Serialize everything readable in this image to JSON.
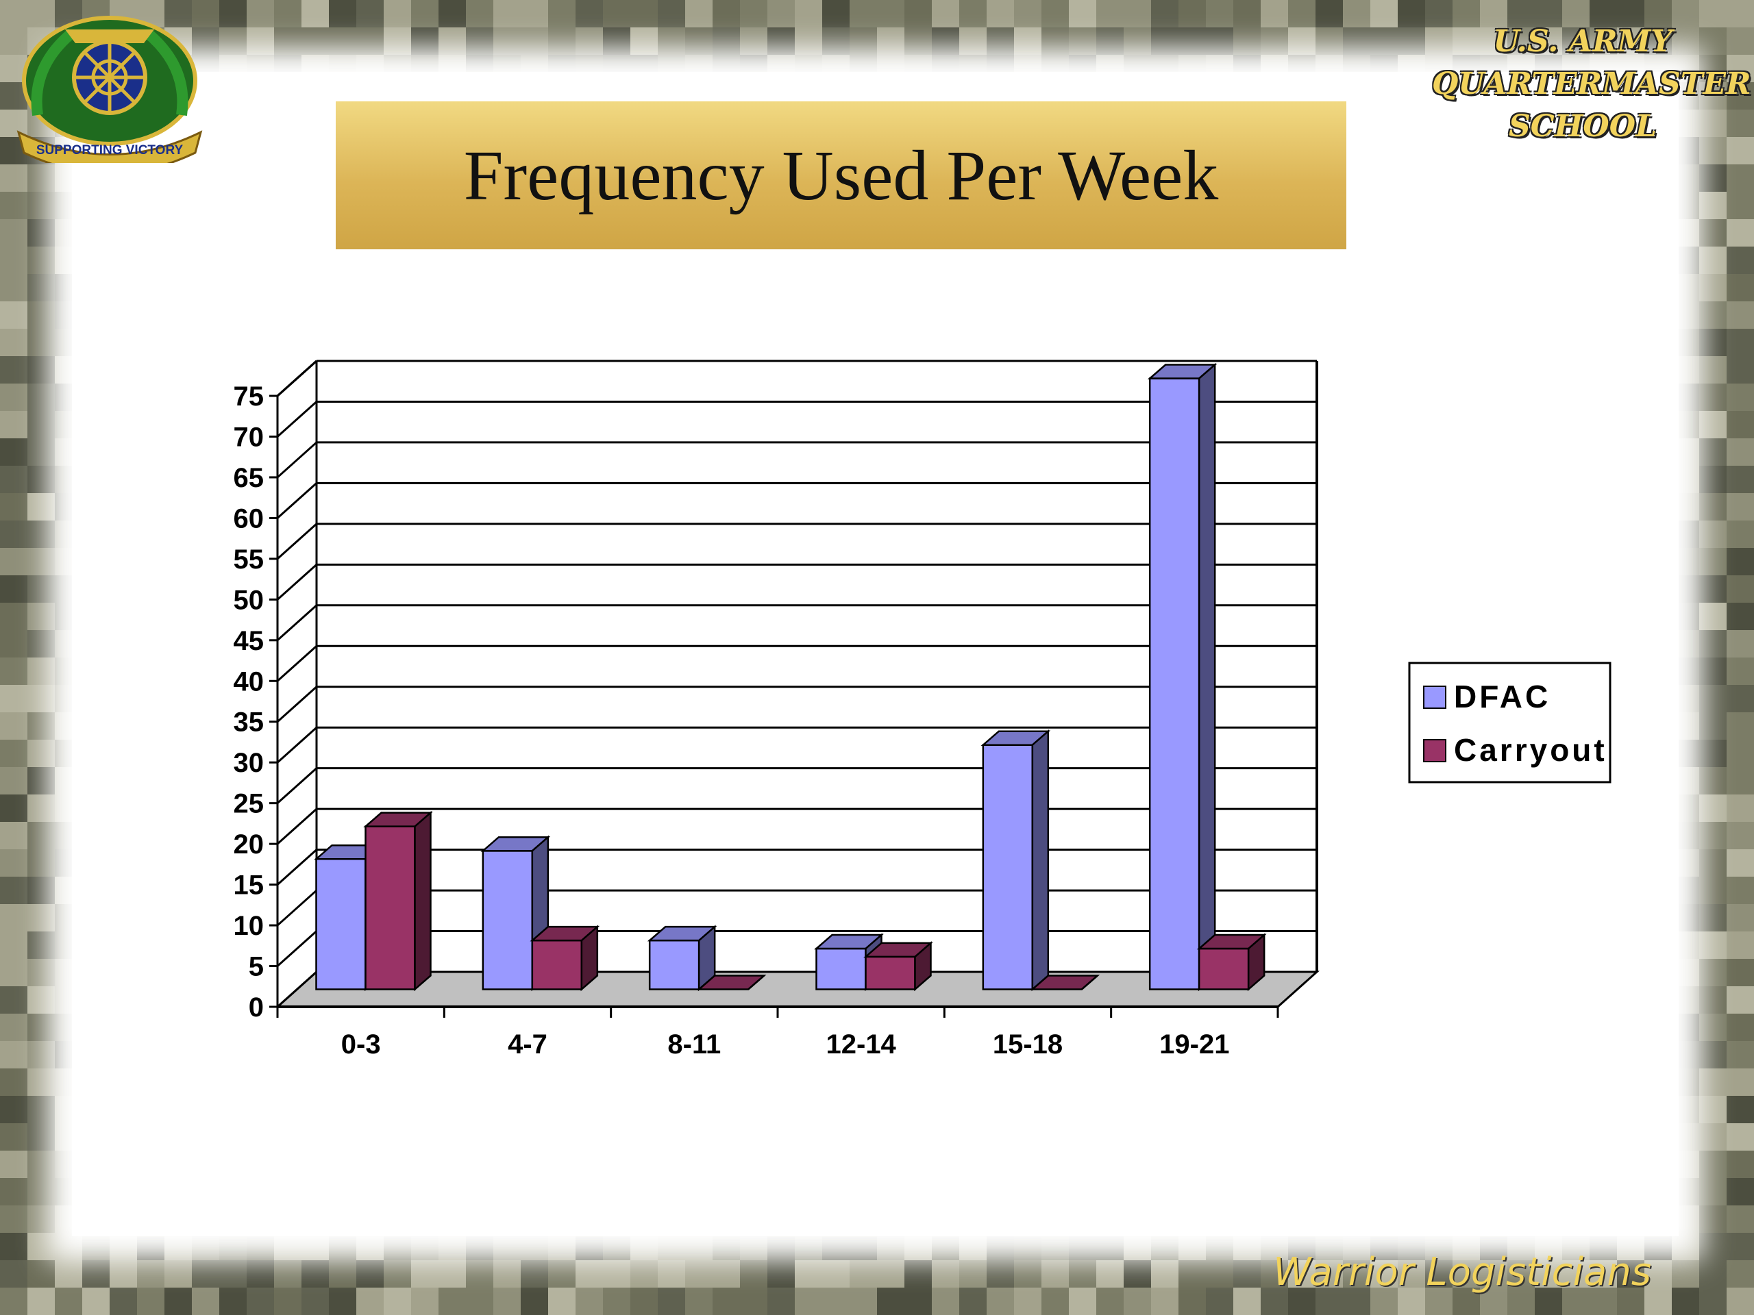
{
  "slide": {
    "title": "Frequency Used Per Week",
    "school_lines": [
      "U.S. ARMY",
      "QUARTERMASTER",
      "SCHOOL"
    ],
    "emblem_motto": "SUPPORTING VICTORY",
    "footer": "Warrior Logisticians"
  },
  "colors": {
    "title_bar": "#dcb557",
    "text_gold": "#f2d35c",
    "dfac": "#9999ff",
    "carryout": "#993366",
    "floor": "#c0c0c0"
  },
  "chart_data": {
    "type": "bar",
    "title": "",
    "xlabel": "",
    "ylabel": "",
    "categories": [
      "0-3",
      "4-7",
      "8-11",
      "12-14",
      "15-18",
      "19-21"
    ],
    "series": [
      {
        "name": "DFAC",
        "color": "#9999ff",
        "values": [
          16,
          17,
          6,
          5,
          30,
          75
        ]
      },
      {
        "name": "Carryout",
        "color": "#993366",
        "values": [
          20,
          6,
          0,
          4,
          0,
          5
        ]
      }
    ],
    "ylim": [
      0,
      75
    ],
    "yticks": [
      0,
      5,
      10,
      15,
      20,
      25,
      30,
      35,
      40,
      45,
      50,
      55,
      60,
      65,
      70,
      75
    ],
    "grid": true,
    "legend_position": "right",
    "style": "3d-clustered-column"
  }
}
